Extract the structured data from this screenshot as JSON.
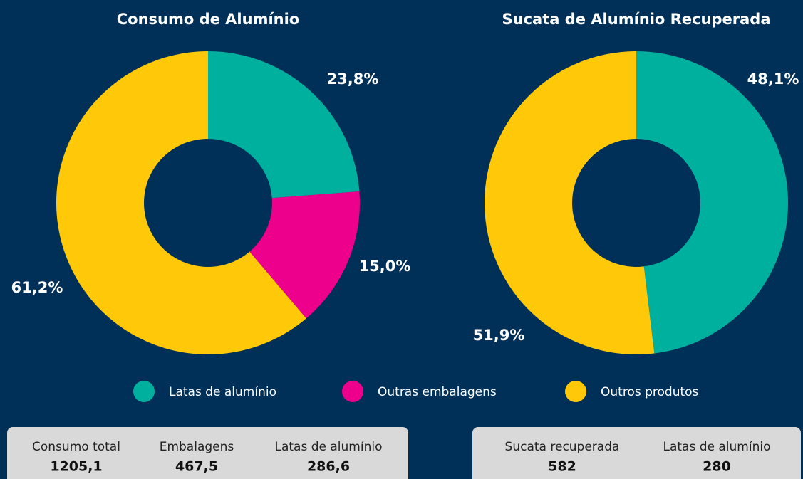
{
  "chart_data": [
    {
      "type": "pie",
      "title": "Consumo de Alumínio",
      "categories": [
        "Latas de alumínio",
        "Outras embalagens",
        "Outros produtos"
      ],
      "values": [
        23.8,
        15.0,
        61.2
      ],
      "value_labels": [
        "23,8%",
        "15,0%",
        "61,2%"
      ],
      "colors": [
        "#00b09e",
        "#ec008c",
        "#ffc90a"
      ],
      "donut": true
    },
    {
      "type": "pie",
      "title": "Sucata de Alumínio Recuperada",
      "categories": [
        "Latas de alumínio",
        "Outros produtos"
      ],
      "values": [
        48.1,
        51.9
      ],
      "value_labels": [
        "48,1%",
        "51,9%"
      ],
      "colors": [
        "#00b09e",
        "#ffc90a"
      ],
      "donut": true
    }
  ],
  "summary": [
    [
      {
        "label": "Consumo total",
        "value": "1205,1"
      },
      {
        "label": "Embalagens",
        "value": "467,5"
      },
      {
        "label": "Latas de alumínio",
        "value": "286,6"
      }
    ],
    [
      {
        "label": "Sucata recuperada",
        "value": "582"
      },
      {
        "label": "Latas de alumínio",
        "value": "280"
      }
    ]
  ]
}
